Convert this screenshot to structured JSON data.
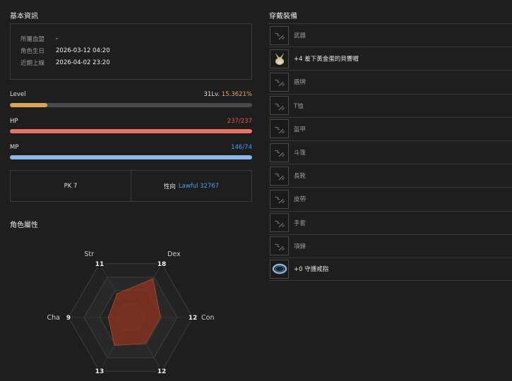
{
  "basic_info": {
    "title": "基本資訊",
    "rows": [
      {
        "label": "所屬血盟",
        "value": "-"
      },
      {
        "label": "角色生日",
        "value": "2026-03-12 04:20"
      },
      {
        "label": "近期上線",
        "value": "2026-04-02 23:20"
      }
    ]
  },
  "level": {
    "label": "Level",
    "value": "31Lv.",
    "percent_text": "15.3621%",
    "fill_fraction": 0.153621,
    "color": "#d9a35b"
  },
  "hp": {
    "label": "HP",
    "value": "237/237",
    "fill_fraction": 1.0,
    "color": "#e8736b",
    "text_color": "#e8564a"
  },
  "mp": {
    "label": "MP",
    "value": "146/74",
    "fill_fraction": 1.0,
    "color": "#8ab8ee",
    "text_color": "#4f9df0"
  },
  "pk": {
    "label": "PK",
    "value": "7"
  },
  "alignment": {
    "label": "性向",
    "value": "Lawful 32767"
  },
  "attributes": {
    "title": "角色屬性",
    "stats": [
      {
        "name": "Str",
        "value": 11
      },
      {
        "name": "Dex",
        "value": 18
      },
      {
        "name": "Con",
        "value": 12
      },
      {
        "name": "",
        "value": 12
      },
      {
        "name": "",
        "value": 13
      },
      {
        "name": "Cha",
        "value": 9
      }
    ],
    "max_value": 25,
    "fill_color": "#8a3320"
  },
  "equipment": {
    "title": "穿戴裝備",
    "slots": [
      {
        "name": "武器",
        "icon": "empty-slot-icon",
        "equipped": false
      },
      {
        "name": "+4 羞下黃金蛋的貝響帽",
        "icon": "rabbit-hat-icon",
        "equipped": true
      },
      {
        "name": "盾牌",
        "icon": "empty-slot-icon",
        "equipped": false
      },
      {
        "name": "T恤",
        "icon": "empty-slot-icon",
        "equipped": false
      },
      {
        "name": "盔甲",
        "icon": "empty-slot-icon",
        "equipped": false
      },
      {
        "name": "斗篷",
        "icon": "empty-slot-icon",
        "equipped": false
      },
      {
        "name": "長靴",
        "icon": "empty-slot-icon",
        "equipped": false
      },
      {
        "name": "皮帶",
        "icon": "empty-slot-icon",
        "equipped": false
      },
      {
        "name": "手套",
        "icon": "empty-slot-icon",
        "equipped": false
      },
      {
        "name": "項鍊",
        "icon": "empty-slot-icon",
        "equipped": false
      },
      {
        "name": "+0 守護戒指",
        "icon": "ring-icon",
        "equipped": true
      }
    ]
  }
}
